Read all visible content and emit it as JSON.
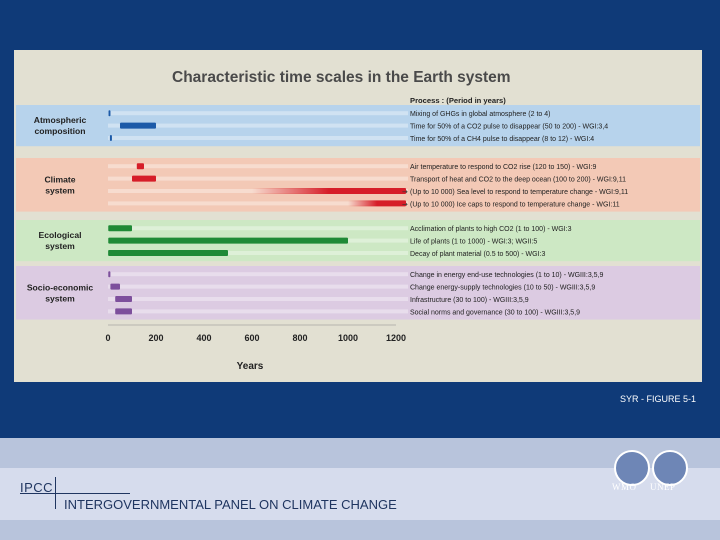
{
  "figure_ref": "SYR - FIGURE 5-1",
  "footer": {
    "abbr": "IPCC",
    "name": "INTERGOVERNMENTAL PANEL ON CLIMATE CHANGE",
    "logos": [
      "WMO",
      "UNEP"
    ]
  },
  "colors": {
    "atmospheric": "#b7d3ec",
    "climate": "#f3c9b6",
    "ecological": "#cde8c4",
    "socio": "#dccbe2",
    "mark_blue": "#1c5aa8",
    "mark_red": "#d61d28",
    "mark_green": "#1f8a36",
    "mark_purple": "#7d4f9c"
  },
  "chart_data": {
    "type": "bar",
    "title": "Characteristic time scales in the Earth system",
    "xlabel": "Years",
    "xlim": [
      0,
      1200
    ],
    "xticks": [
      "0",
      "200",
      "400",
      "600",
      "800",
      "1000",
      "1200"
    ],
    "legend_header": "Process : (Period in years)",
    "groups": [
      {
        "name": "Atmospheric composition",
        "color_key": "atmospheric",
        "mark_key": "mark_blue",
        "processes": [
          {
            "label": "Mixing of GHGs in global atmosphere (2 to 4)",
            "start": 2,
            "end": 4
          },
          {
            "label": "Time for 50% of a CO2 pulse to disappear (50 to 200) - WGI:3,4",
            "start": 50,
            "end": 200
          },
          {
            "label": "Time for 50% of a CH4 pulse to disappear (8 to 12) - WGI:4",
            "start": 8,
            "end": 12
          }
        ]
      },
      {
        "name": "Climate system",
        "color_key": "climate",
        "mark_key": "mark_red",
        "processes": [
          {
            "label": "Air temperature to respond to CO2 rise (120 to 150) - WGI:9",
            "start": 120,
            "end": 150
          },
          {
            "label": "Transport of heat and CO2 to the deep ocean (100 to 200) - WGI:9,11",
            "start": 100,
            "end": 200
          },
          {
            "label": "(Up to 10 000) Sea level to respond to temperature change - WGI:9,11",
            "start": 600,
            "end": 10000
          },
          {
            "label": "(Up to 10 000) Ice caps to respond to temperature change - WGI:11",
            "start": 1000,
            "end": 10000
          }
        ]
      },
      {
        "name": "Ecological system",
        "color_key": "ecological",
        "mark_key": "mark_green",
        "processes": [
          {
            "label": "Acclimation of plants to high CO2 (1 to 100) - WGI:3",
            "start": 1,
            "end": 100
          },
          {
            "label": "Life of plants (1 to 1000) - WGI:3; WGII:5",
            "start": 1,
            "end": 1000
          },
          {
            "label": "Decay of plant material (0.5 to 500) - WGI:3",
            "start": 0.5,
            "end": 500
          }
        ]
      },
      {
        "name": "Socio-economic system",
        "color_key": "socio",
        "mark_key": "mark_purple",
        "processes": [
          {
            "label": "Change in energy end-use technologies (1 to 10) - WGIII:3,5,9",
            "start": 1,
            "end": 10
          },
          {
            "label": "Change energy-supply technologies (10 to 50) - WGIII:3,5,9",
            "start": 10,
            "end": 50
          },
          {
            "label": "Infrastructure (30 to 100) - WGIII:3,5,9",
            "start": 30,
            "end": 100
          },
          {
            "label": "Social norms and governance (30 to 100) - WGIII:3,5,9",
            "start": 30,
            "end": 100
          }
        ]
      }
    ]
  }
}
